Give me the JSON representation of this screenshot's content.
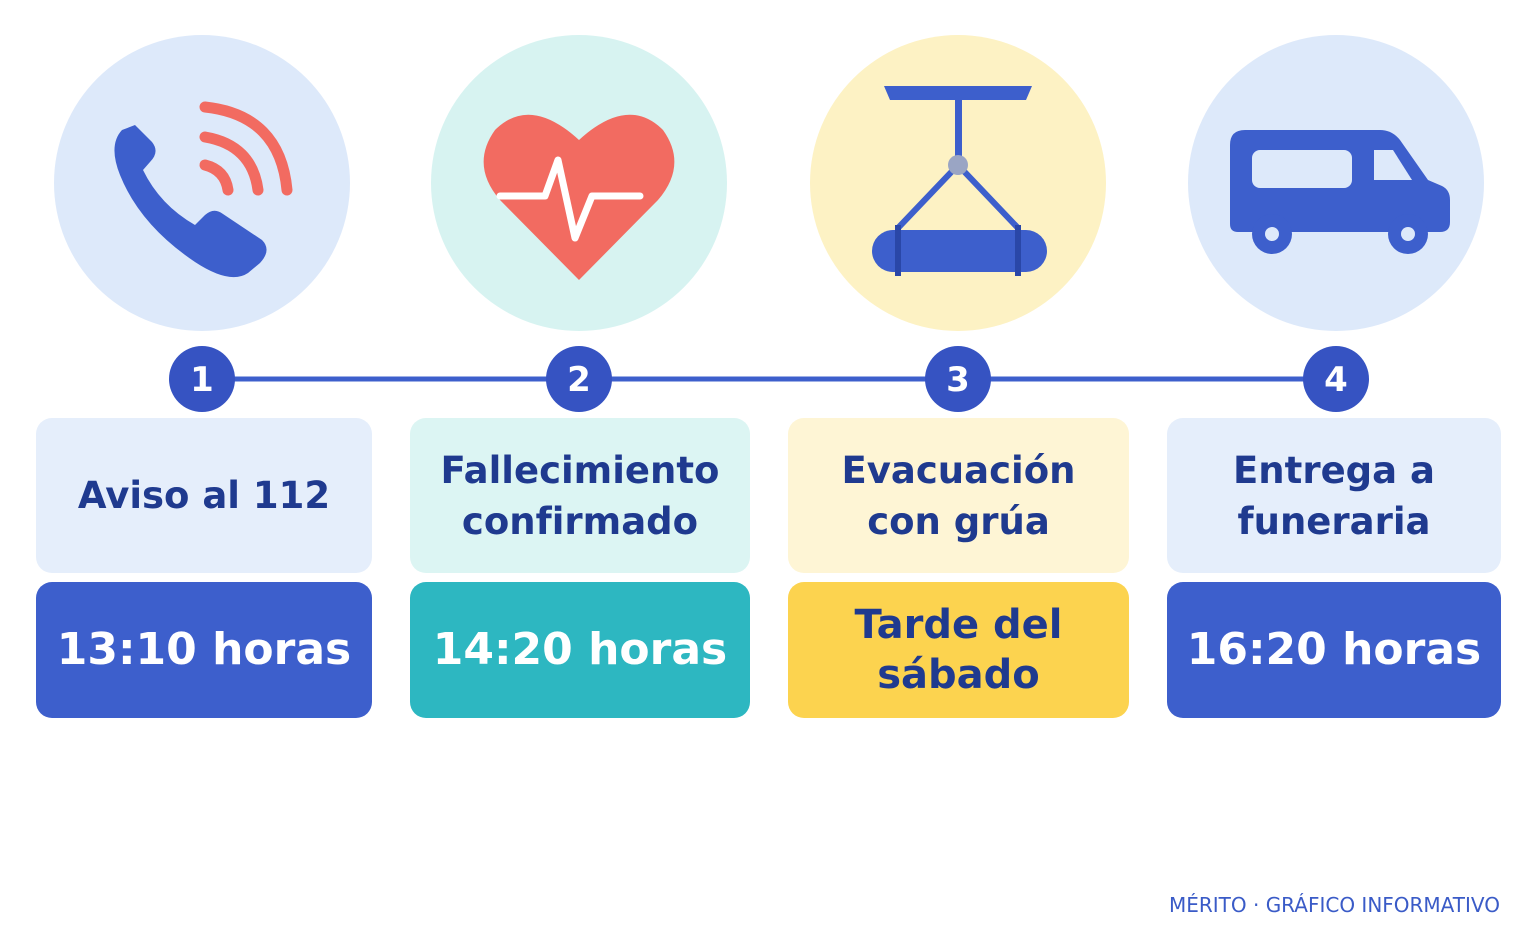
{
  "steps": [
    {
      "number": "1",
      "label_lines": [
        "Aviso al 112"
      ],
      "time_lines": [
        "13:10 horas"
      ]
    },
    {
      "number": "2",
      "label_lines": [
        "Fallecimiento",
        "confirmado"
      ],
      "time_lines": [
        "14:20 horas"
      ]
    },
    {
      "number": "3",
      "label_lines": [
        "Evacuación",
        "con grúa"
      ],
      "time_lines": [
        "Tarde del",
        "sábado"
      ]
    },
    {
      "number": "4",
      "label_lines": [
        "Entrega a",
        "funeraria"
      ],
      "time_lines": [
        "16:20 horas"
      ]
    }
  ],
  "footer": "MÉRITO · GRÁFICO INFORMATIVO"
}
